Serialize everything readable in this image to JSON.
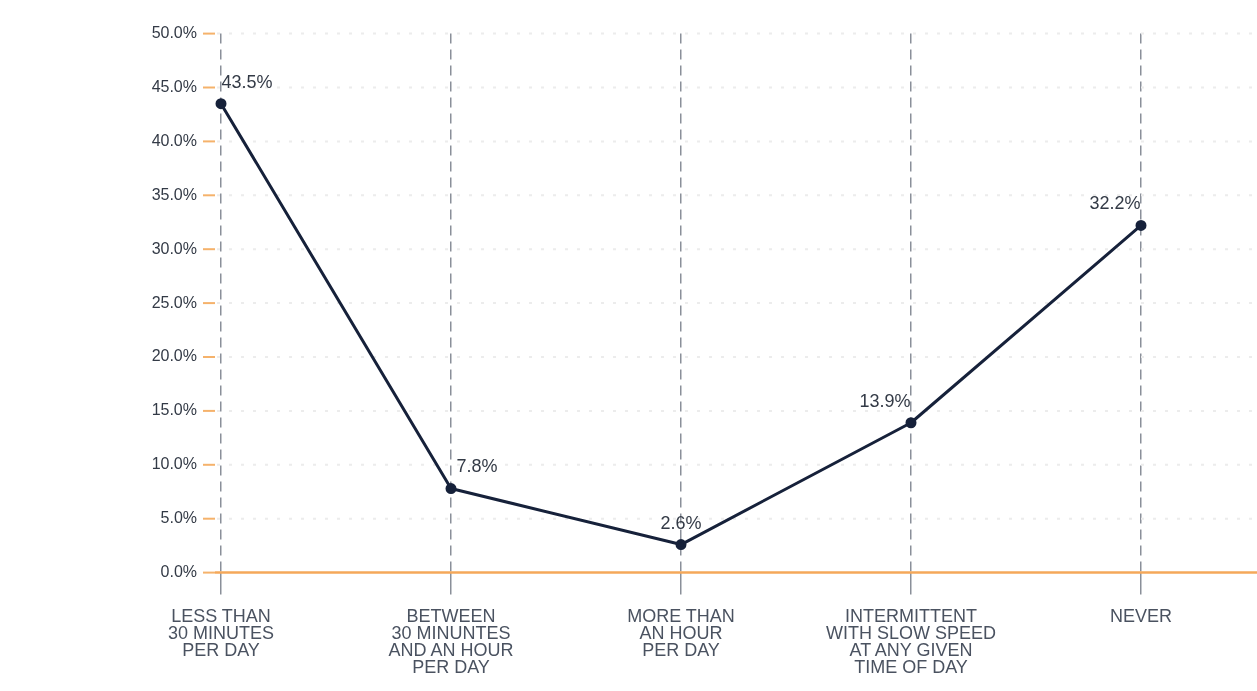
{
  "chart_data": {
    "type": "line",
    "categories": [
      "LESS THAN\n30 MINUTES\nPER DAY",
      "BETWEEN\n30 MINUNTES\nAND AN HOUR\nPER DAY",
      "MORE THAN\nAN HOUR\nPER DAY",
      "INTERMITTENT\nWITH SLOW SPEED\nAT ANY GIVEN\nTIME OF DAY",
      "NEVER"
    ],
    "series": [
      {
        "color": "#16213a",
        "values": [
          43.5,
          7.8,
          2.6,
          13.9,
          32.2
        ],
        "value_labels": [
          "43.5%",
          "7.8%",
          "2.6%",
          "13.9%",
          "32.2%"
        ]
      }
    ],
    "ylim": [
      0,
      50
    ],
    "yticks": [
      {
        "value": 0,
        "label": "0.0%"
      },
      {
        "value": 5,
        "label": "5.0%"
      },
      {
        "value": 10,
        "label": "10.0%"
      },
      {
        "value": 15,
        "label": "15.0%"
      },
      {
        "value": 20,
        "label": "20.0%"
      },
      {
        "value": 25,
        "label": "25.0%"
      },
      {
        "value": 30,
        "label": "30.0%"
      },
      {
        "value": 35,
        "label": "35.0%"
      },
      {
        "value": 40,
        "label": "40.0%"
      },
      {
        "value": 45,
        "label": "45.0%"
      },
      {
        "value": 50,
        "label": "50.0%"
      }
    ],
    "grid": true,
    "marker": "circle",
    "line_style": "solid",
    "legend": false
  }
}
